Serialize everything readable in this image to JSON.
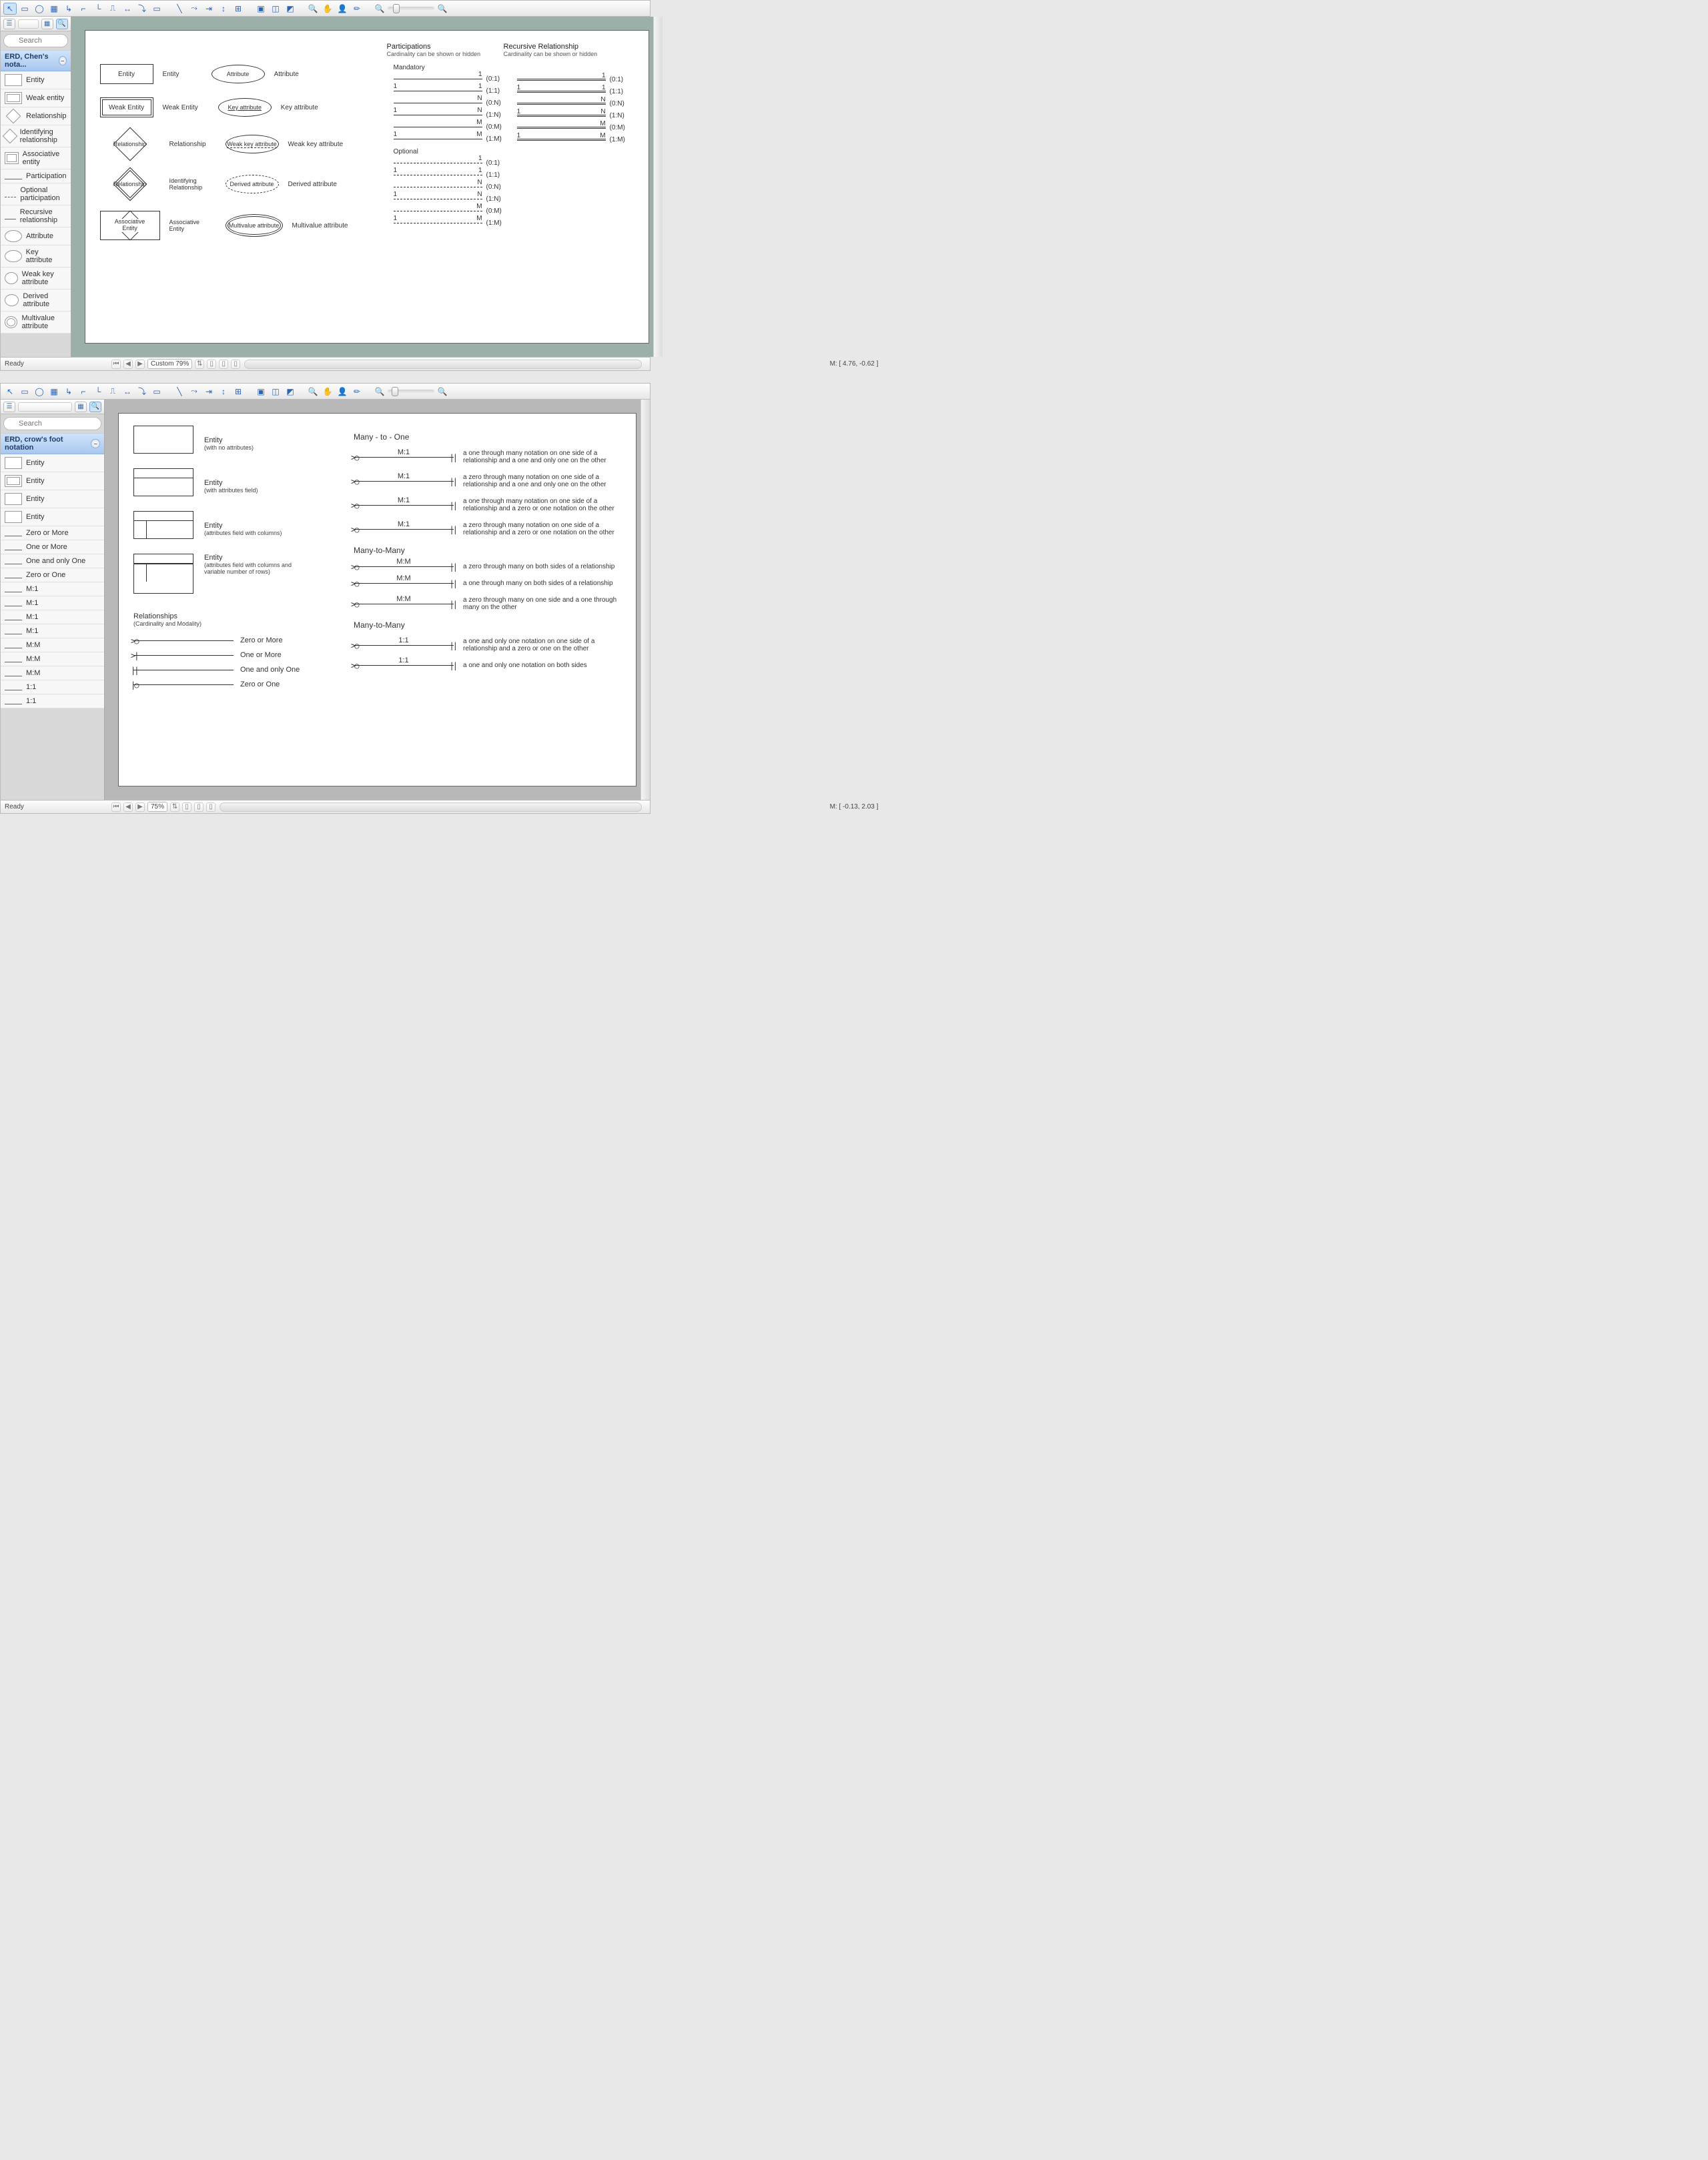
{
  "search_placeholder": "Search",
  "window1": {
    "panel_title": "ERD, Chen's nota...",
    "status_ready": "Ready",
    "zoom_label": "Custom 79%",
    "mouse_pos": "M: [ 4.76, -0.62 ]",
    "lib_items": [
      {
        "label": "Entity",
        "icon": "rect"
      },
      {
        "label": "Weak entity",
        "icon": "rect-double"
      },
      {
        "label": "Relationship",
        "icon": "diamond"
      },
      {
        "label": "Identifying relationship",
        "icon": "diamond-double"
      },
      {
        "label": "Associative entity",
        "icon": "assoc"
      },
      {
        "label": "Participation",
        "icon": "line"
      },
      {
        "label": "Optional participation",
        "icon": "line-dash"
      },
      {
        "label": "Recursive relationship",
        "icon": "line-dbl"
      },
      {
        "label": "Attribute",
        "icon": "oval"
      },
      {
        "label": "Key attribute",
        "icon": "oval"
      },
      {
        "label": "Weak key attribute",
        "icon": "oval"
      },
      {
        "label": "Derived attribute",
        "icon": "oval-dash"
      },
      {
        "label": "Multivalue attribute",
        "icon": "oval-double"
      }
    ],
    "paper": {
      "row1": {
        "shape": "Entity",
        "lbl": "Entity",
        "attr_shape": "Attribute",
        "attr_lbl": "Attribute"
      },
      "row2": {
        "shape": "Weak Entity",
        "lbl": "Weak Entity",
        "attr_shape": "Key attribute",
        "attr_lbl": "Key attribute"
      },
      "row3": {
        "shape": "Relationship",
        "lbl": "Relationship",
        "attr_shape": "Weak key attribute",
        "attr_lbl": "Weak key attribute"
      },
      "row4": {
        "shape": "Relationship",
        "lbl": "Identifying Relationship",
        "attr_shape": "Derived attribute",
        "attr_lbl": "Derived attribute"
      },
      "row5": {
        "shape": "Associative Entity",
        "lbl": "Associative Entity",
        "attr_shape": "Multivalue attribute",
        "attr_lbl": "Multivalue attribute"
      },
      "hdr_part": "Participations",
      "hdr_part_sub": "Cardinality can be shown or hidden",
      "hdr_rec": "Recursive Relationship",
      "hdr_rec_sub": "Cardinality can be shown or hidden",
      "sect_mand": "Mandatory",
      "sect_opt": "Optional",
      "mand_rows": [
        {
          "l": "",
          "r": "1",
          "t": "(0:1)"
        },
        {
          "l": "1",
          "r": "1",
          "t": "(1:1)"
        },
        {
          "l": "",
          "r": "N",
          "t": "(0:N)"
        },
        {
          "l": "1",
          "r": "N",
          "t": "(1:N)"
        },
        {
          "l": "",
          "r": "M",
          "t": "(0:M)"
        },
        {
          "l": "1",
          "r": "M",
          "t": "(1:M)"
        }
      ],
      "opt_rows": [
        {
          "l": "",
          "r": "1",
          "t": "(0:1)"
        },
        {
          "l": "1",
          "r": "1",
          "t": "(1:1)"
        },
        {
          "l": "",
          "r": "N",
          "t": "(0:N)"
        },
        {
          "l": "1",
          "r": "N",
          "t": "(1:N)"
        },
        {
          "l": "",
          "r": "M",
          "t": "(0:M)"
        },
        {
          "l": "1",
          "r": "M",
          "t": "(1:M)"
        }
      ]
    }
  },
  "window2": {
    "panel_title": "ERD, crow's foot notation",
    "status_ready": "Ready",
    "zoom_label": "75%",
    "mouse_pos": "M: [ -0.13, 2.03 ]",
    "lib_items": [
      {
        "label": "Entity"
      },
      {
        "label": "Entity"
      },
      {
        "label": "Entity"
      },
      {
        "label": "Entity"
      },
      {
        "label": "Zero or More"
      },
      {
        "label": "One or More"
      },
      {
        "label": "One and only One"
      },
      {
        "label": "Zero or One"
      },
      {
        "label": "M:1"
      },
      {
        "label": "M:1"
      },
      {
        "label": "M:1"
      },
      {
        "label": "M:1"
      },
      {
        "label": "M:M"
      },
      {
        "label": "M:M"
      },
      {
        "label": "M:M"
      },
      {
        "label": "1:1"
      },
      {
        "label": "1:1"
      }
    ],
    "paper": {
      "entities": [
        {
          "title": "Entity",
          "sub": "(with no attributes)"
        },
        {
          "title": "Entity",
          "sub": "(with attributes field)"
        },
        {
          "title": "Entity",
          "sub": "(attributes field with columns)"
        },
        {
          "title": "Entity",
          "sub": "(attributes field with columns and variable number of rows)"
        }
      ],
      "rel_hdr": "Relationships",
      "rel_sub": "(Cardinality and Modality)",
      "basics": [
        {
          "label": "Zero or More"
        },
        {
          "label": "One or More"
        },
        {
          "label": "One and only One"
        },
        {
          "label": "Zero or One"
        }
      ],
      "sec1": "Many - to - One",
      "sec1_rows": [
        {
          "mid": "M:1",
          "desc": "a one through many notation on one side of a relationship and a one and only one on the other"
        },
        {
          "mid": "M:1",
          "desc": "a zero through many notation on one side of a relationship and a one and only one on the other"
        },
        {
          "mid": "M:1",
          "desc": "a one through many notation on one side of a relationship and a zero or one notation on the other"
        },
        {
          "mid": "M:1",
          "desc": "a zero through many notation on one side of a relationship and a zero or one notation on the other"
        }
      ],
      "sec2": "Many-to-Many",
      "sec2_rows": [
        {
          "mid": "M:M",
          "desc": "a zero through many on both sides of a relationship"
        },
        {
          "mid": "M:M",
          "desc": "a one through many on both sides of a relationship"
        },
        {
          "mid": "M:M",
          "desc": "a zero through many on one side and a one through many on the other"
        }
      ],
      "sec3": "Many-to-Many",
      "sec3_rows": [
        {
          "mid": "1:1",
          "desc": "a one and only one notation on one side of a relationship and a zero or one on the other"
        },
        {
          "mid": "1:1",
          "desc": "a one and only one notation on both sides"
        }
      ]
    }
  },
  "toolbar_glyphs": [
    "⬚",
    "▭",
    "◯",
    "▦",
    "↳",
    "⌐",
    "└",
    "⎍",
    "↔",
    "⤵",
    "▭",
    "│",
    "╲",
    "⤳",
    "⇥",
    "↕",
    "⊞",
    "▣",
    "◫",
    "◩",
    "🔍",
    "✋",
    "👤",
    "✏",
    "🔍-",
    "—",
    "🔍+"
  ]
}
